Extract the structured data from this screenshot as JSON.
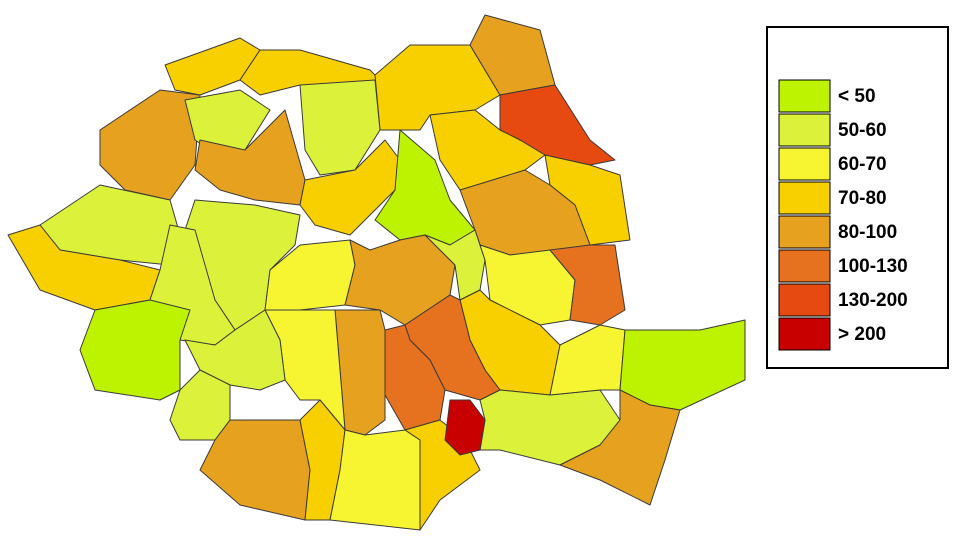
{
  "legend": {
    "items": [
      {
        "label": "< 50",
        "color": "#bdf200"
      },
      {
        "label": "50-60",
        "color": "#dcf23a"
      },
      {
        "label": "60-70",
        "color": "#f7f531"
      },
      {
        "label": "70-80",
        "color": "#f8d000"
      },
      {
        "label": "80-100",
        "color": "#e6a11f"
      },
      {
        "label": "100-130",
        "color": "#e6721f"
      },
      {
        "label": "130-200",
        "color": "#e64a10"
      },
      {
        "label": "> 200",
        "color": "#c80000"
      }
    ]
  }
}
